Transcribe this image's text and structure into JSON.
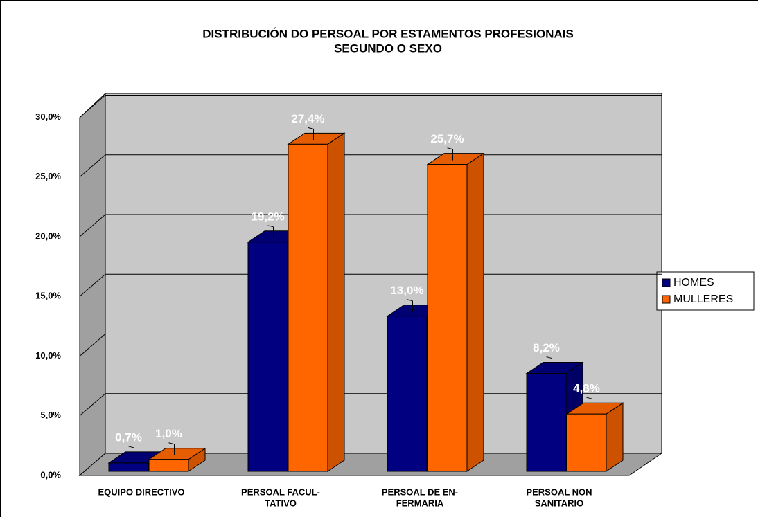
{
  "chart_data": {
    "type": "bar3d",
    "title": [
      "DISTRIBUCIÓN DO PERSOAL POR ESTAMENTOS PROFESIONAIS",
      "SEGUNDO O SEXO"
    ],
    "categories": [
      [
        "EQUIPO DIRECTIVO"
      ],
      [
        "PERSOAL FACUL-",
        "TATIVO"
      ],
      [
        "PERSOAL DE EN-",
        "FERMARIA"
      ],
      [
        "PERSOAL NON",
        "SANITARIO"
      ]
    ],
    "series": [
      {
        "name": "HOMES",
        "color": "#000080",
        "values": [
          0.7,
          19.2,
          13.0,
          8.2
        ],
        "value_labels": [
          "0,7%",
          "19,2%",
          "13,0%",
          "8,2%"
        ]
      },
      {
        "name": "MULLERES",
        "color": "#FF6600",
        "values": [
          1.0,
          27.4,
          25.7,
          4.8
        ],
        "value_labels": [
          "1,0%",
          "27,4%",
          "25,7%",
          "4,8%"
        ]
      }
    ],
    "ylim": [
      0,
      30
    ],
    "yticks": [
      {
        "value": 0,
        "label": "0,0%"
      },
      {
        "value": 5,
        "label": "5,0%"
      },
      {
        "value": 10,
        "label": "10,0%"
      },
      {
        "value": 15,
        "label": "15,0%"
      },
      {
        "value": 20,
        "label": "20,0%"
      },
      {
        "value": 25,
        "label": "25,0%"
      },
      {
        "value": 30,
        "label": "30,0%"
      }
    ],
    "grid": true,
    "legend": "right"
  }
}
